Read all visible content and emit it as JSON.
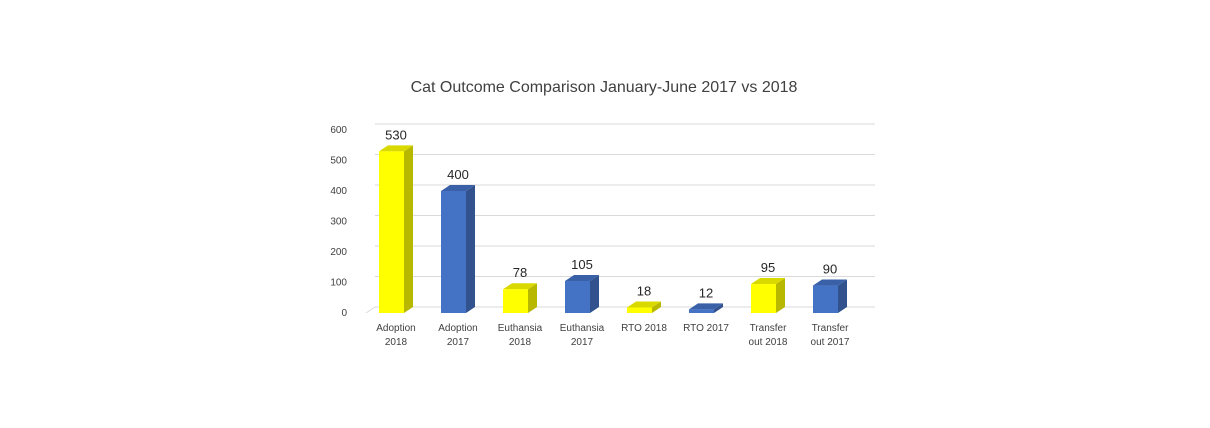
{
  "chart_data": {
    "type": "bar",
    "title": "Cat Outcome Comparison January-June 2017 vs 2018",
    "xlabel": "",
    "ylabel": "",
    "ylim": [
      0,
      600
    ],
    "yticks": [
      0,
      100,
      200,
      300,
      400,
      500,
      600
    ],
    "grid": true,
    "legend": "none",
    "categories": [
      [
        "Adoption",
        "2018"
      ],
      [
        "Adoption",
        "2017"
      ],
      [
        "Euthansia",
        "2018"
      ],
      [
        "Euthansia",
        "2017"
      ],
      [
        "RTO 2018"
      ],
      [
        "RTO 2017"
      ],
      [
        "Transfer",
        "out 2018"
      ],
      [
        "Transfer",
        "out 2017"
      ]
    ],
    "values": [
      530,
      400,
      78,
      105,
      18,
      12,
      95,
      90
    ],
    "colors": [
      "#FFFF00",
      "#4472C4",
      "#FFFF00",
      "#4472C4",
      "#FFFF00",
      "#4472C4",
      "#FFFF00",
      "#4472C4"
    ]
  }
}
